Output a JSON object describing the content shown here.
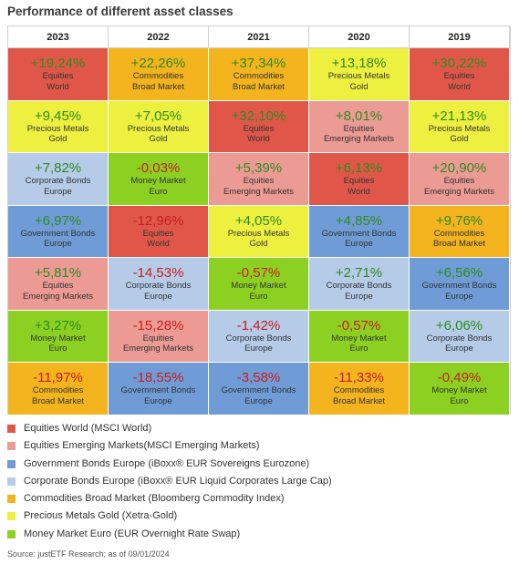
{
  "title": "Performance of different asset classes",
  "source": "Source: justETF Research; as of 09/01/2024",
  "chart_data": {
    "type": "table",
    "title": "Performance of different asset classes",
    "years": [
      "2023",
      "2022",
      "2021",
      "2020",
      "2019"
    ],
    "assets": {
      "EW": {
        "line1": "Equities",
        "line2": "World",
        "color": "#e0574a"
      },
      "EM": {
        "line1": "Equities",
        "line2": "Emerging Markets",
        "color": "#ec9a94"
      },
      "GB": {
        "line1": "Government Bonds",
        "line2": "Europe",
        "color": "#6f9cd6"
      },
      "CB": {
        "line1": "Corporate Bonds",
        "line2": "Europe",
        "color": "#b5cbe8"
      },
      "CM": {
        "line1": "Commodities",
        "line2": "Broad Market",
        "color": "#f3b41e"
      },
      "PM": {
        "line1": "Precious Metals",
        "line2": "Gold",
        "color": "#eef03f"
      },
      "MM": {
        "line1": "Money Market",
        "line2": "Euro",
        "color": "#8cd121"
      }
    },
    "columns": [
      [
        {
          "asset": "EW",
          "value": "+19,24%"
        },
        {
          "asset": "PM",
          "value": "+9,45%"
        },
        {
          "asset": "CB",
          "value": "+7,82%"
        },
        {
          "asset": "GB",
          "value": "+6,97%"
        },
        {
          "asset": "EM",
          "value": "+5,81%"
        },
        {
          "asset": "MM",
          "value": "+3,27%"
        },
        {
          "asset": "CM",
          "value": "-11,97%"
        }
      ],
      [
        {
          "asset": "CM",
          "value": "+22,26%"
        },
        {
          "asset": "PM",
          "value": "+7,05%"
        },
        {
          "asset": "MM",
          "value": "-0,03%"
        },
        {
          "asset": "EW",
          "value": "-12,96%"
        },
        {
          "asset": "CB",
          "value": "-14,53%"
        },
        {
          "asset": "EM",
          "value": "-15,28%"
        },
        {
          "asset": "GB",
          "value": "-18,55%"
        }
      ],
      [
        {
          "asset": "CM",
          "value": "+37,34%"
        },
        {
          "asset": "EW",
          "value": "+32,10%"
        },
        {
          "asset": "EM",
          "value": "+5,39%"
        },
        {
          "asset": "PM",
          "value": "+4,05%"
        },
        {
          "asset": "MM",
          "value": "-0,57%"
        },
        {
          "asset": "CB",
          "value": "-1,42%"
        },
        {
          "asset": "GB",
          "value": "-3,58%"
        }
      ],
      [
        {
          "asset": "PM",
          "value": "+13,18%"
        },
        {
          "asset": "EM",
          "value": "+8,01%"
        },
        {
          "asset": "EW",
          "value": "+6,13%"
        },
        {
          "asset": "GB",
          "value": "+4,85%"
        },
        {
          "asset": "CB",
          "value": "+2,71%"
        },
        {
          "asset": "MM",
          "value": "-0,57%"
        },
        {
          "asset": "CM",
          "value": "-11,33%"
        }
      ],
      [
        {
          "asset": "EW",
          "value": "+30,22%"
        },
        {
          "asset": "PM",
          "value": "+21,13%"
        },
        {
          "asset": "EM",
          "value": "+20,90%"
        },
        {
          "asset": "CM",
          "value": "+9,76%"
        },
        {
          "asset": "GB",
          "value": "+6,56%"
        },
        {
          "asset": "CB",
          "value": "+6,06%"
        },
        {
          "asset": "MM",
          "value": "-0,49%"
        }
      ]
    ],
    "legend": [
      {
        "label": "Equities World (MSCI World)",
        "color": "#e0574a"
      },
      {
        "label": "Equities Emerging Markets(MSCI Emerging Markets)",
        "color": "#ec9a94"
      },
      {
        "label": "Government Bonds Europe (iBoxx® EUR Sovereigns Eurozone)",
        "color": "#6f9cd6"
      },
      {
        "label": "Corporate Bonds Europe (iBoxx® EUR Liquid Corporates Large Cap)",
        "color": "#b5cbe8"
      },
      {
        "label": "Commodities Broad Market (Bloomberg Commodity Index)",
        "color": "#f3b41e"
      },
      {
        "label": "Precious Metals Gold (Xetra-Gold)",
        "color": "#eef03f"
      },
      {
        "label": "Money Market Euro (EUR Overnight Rate Swap)",
        "color": "#8cd121"
      }
    ]
  }
}
